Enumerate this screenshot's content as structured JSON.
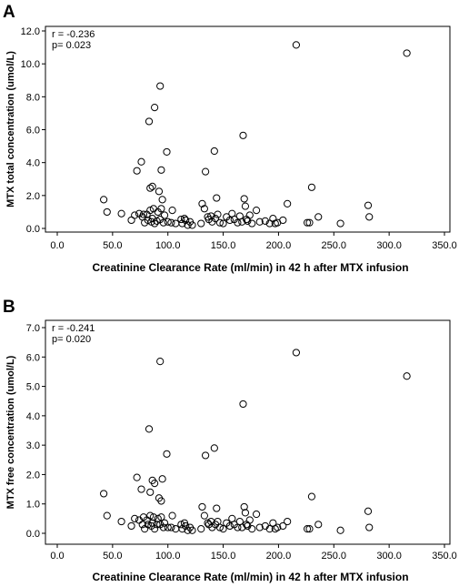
{
  "chart_data": [
    {
      "type": "scatter",
      "panel_label": "A",
      "xlabel": "Creatinine Clearance Rate (ml/min)  in 42 h after MTX infusion",
      "ylabel": "MTX total concentration (umol/L)",
      "xlim": [
        0,
        350
      ],
      "ylim": [
        0,
        12
      ],
      "x_ticks": [
        "0.0",
        "50.0",
        "100.0",
        "150.0",
        "200.0",
        "250.0",
        "300.0",
        "350.0"
      ],
      "y_ticks": [
        "0.0",
        "2.0",
        "4.0",
        "6.0",
        "8.0",
        "10.0",
        "12.0"
      ],
      "x_tick_values": [
        0,
        50,
        100,
        150,
        200,
        250,
        300,
        350
      ],
      "y_tick_values": [
        0,
        2,
        4,
        6,
        8,
        10,
        12
      ],
      "stats": [
        "r = -0.236",
        "p= 0.023"
      ],
      "grid": false,
      "marker": "open-circle",
      "points": [
        [
          42,
          1.75
        ],
        [
          45,
          1.0
        ],
        [
          58,
          0.9
        ],
        [
          67,
          0.5
        ],
        [
          70,
          0.8
        ],
        [
          72,
          3.5
        ],
        [
          74,
          0.9
        ],
        [
          76,
          4.05
        ],
        [
          77,
          0.7
        ],
        [
          78,
          0.85
        ],
        [
          79,
          0.35
        ],
        [
          81,
          0.85
        ],
        [
          82,
          0.5
        ],
        [
          83,
          6.5
        ],
        [
          84,
          1.1
        ],
        [
          84,
          2.45
        ],
        [
          85,
          0.4
        ],
        [
          86,
          2.55
        ],
        [
          86,
          0.6
        ],
        [
          87,
          1.2
        ],
        [
          88,
          7.35
        ],
        [
          88,
          0.3
        ],
        [
          90,
          0.45
        ],
        [
          91,
          1.0
        ],
        [
          92,
          2.25
        ],
        [
          93,
          8.65
        ],
        [
          93,
          0.55
        ],
        [
          94,
          1.2
        ],
        [
          94,
          3.55
        ],
        [
          95,
          1.75
        ],
        [
          96,
          0.35
        ],
        [
          97,
          0.8
        ],
        [
          99,
          4.65
        ],
        [
          100,
          0.4
        ],
        [
          103,
          0.35
        ],
        [
          104,
          1.1
        ],
        [
          107,
          0.3
        ],
        [
          112,
          0.55
        ],
        [
          113,
          0.3
        ],
        [
          115,
          0.6
        ],
        [
          116,
          0.5
        ],
        [
          118,
          0.2
        ],
        [
          120,
          0.4
        ],
        [
          122,
          0.2
        ],
        [
          130,
          0.3
        ],
        [
          131,
          1.5
        ],
        [
          133,
          1.2
        ],
        [
          134,
          3.45
        ],
        [
          136,
          0.7
        ],
        [
          137,
          0.55
        ],
        [
          139,
          0.75
        ],
        [
          140,
          0.4
        ],
        [
          142,
          4.7
        ],
        [
          143,
          0.6
        ],
        [
          144,
          1.85
        ],
        [
          145,
          0.85
        ],
        [
          147,
          0.35
        ],
        [
          150,
          0.3
        ],
        [
          153,
          0.7
        ],
        [
          156,
          0.5
        ],
        [
          158,
          0.9
        ],
        [
          160,
          0.55
        ],
        [
          163,
          0.35
        ],
        [
          165,
          0.75
        ],
        [
          167,
          0.4
        ],
        [
          168,
          5.65
        ],
        [
          169,
          1.8
        ],
        [
          170,
          1.35
        ],
        [
          171,
          0.55
        ],
        [
          172,
          0.45
        ],
        [
          174,
          0.8
        ],
        [
          176,
          0.3
        ],
        [
          180,
          1.1
        ],
        [
          183,
          0.4
        ],
        [
          188,
          0.45
        ],
        [
          192,
          0.3
        ],
        [
          195,
          0.6
        ],
        [
          197,
          0.3
        ],
        [
          199,
          0.35
        ],
        [
          204,
          0.5
        ],
        [
          208,
          1.5
        ],
        [
          216,
          11.15
        ],
        [
          226,
          0.35
        ],
        [
          228,
          0.35
        ],
        [
          230,
          2.5
        ],
        [
          236,
          0.7
        ],
        [
          256,
          0.3
        ],
        [
          281,
          1.4
        ],
        [
          282,
          0.7
        ],
        [
          316,
          10.65
        ]
      ]
    },
    {
      "type": "scatter",
      "panel_label": "B",
      "xlabel": "Creatinine Clearance Rate (ml/min)  in 42 h after MTX infusion",
      "ylabel": "MTX free concentration (umol/L)",
      "xlim": [
        0,
        350
      ],
      "ylim": [
        0,
        7
      ],
      "x_ticks": [
        "0.0",
        "50.0",
        "100.0",
        "150.0",
        "200.0",
        "250.0",
        "300.0",
        "350.0"
      ],
      "y_ticks": [
        "0.0",
        "1.0",
        "2.0",
        "3.0",
        "4.0",
        "5.0",
        "6.0",
        "7.0"
      ],
      "x_tick_values": [
        0,
        50,
        100,
        150,
        200,
        250,
        300,
        350
      ],
      "y_tick_values": [
        0,
        1,
        2,
        3,
        4,
        5,
        6,
        7
      ],
      "stats": [
        "r = -0.241",
        "p= 0.020"
      ],
      "grid": false,
      "marker": "open-circle",
      "points": [
        [
          42,
          1.35
        ],
        [
          45,
          0.6
        ],
        [
          58,
          0.4
        ],
        [
          67,
          0.25
        ],
        [
          70,
          0.5
        ],
        [
          72,
          1.9
        ],
        [
          74,
          0.45
        ],
        [
          76,
          1.5
        ],
        [
          77,
          0.3
        ],
        [
          78,
          0.55
        ],
        [
          79,
          0.15
        ],
        [
          81,
          0.45
        ],
        [
          82,
          0.3
        ],
        [
          83,
          3.55
        ],
        [
          84,
          0.6
        ],
        [
          84,
          1.4
        ],
        [
          85,
          0.25
        ],
        [
          86,
          1.8
        ],
        [
          86,
          0.35
        ],
        [
          87,
          0.55
        ],
        [
          88,
          1.7
        ],
        [
          88,
          0.15
        ],
        [
          90,
          0.3
        ],
        [
          91,
          0.5
        ],
        [
          92,
          1.2
        ],
        [
          93,
          5.85
        ],
        [
          93,
          0.3
        ],
        [
          94,
          0.55
        ],
        [
          94,
          1.1
        ],
        [
          95,
          1.85
        ],
        [
          96,
          0.2
        ],
        [
          97,
          0.35
        ],
        [
          99,
          2.7
        ],
        [
          100,
          0.2
        ],
        [
          103,
          0.2
        ],
        [
          104,
          0.6
        ],
        [
          107,
          0.15
        ],
        [
          112,
          0.3
        ],
        [
          113,
          0.15
        ],
        [
          115,
          0.35
        ],
        [
          116,
          0.25
        ],
        [
          118,
          0.1
        ],
        [
          120,
          0.2
        ],
        [
          122,
          0.1
        ],
        [
          130,
          0.15
        ],
        [
          131,
          0.9
        ],
        [
          133,
          0.6
        ],
        [
          134,
          2.65
        ],
        [
          136,
          0.35
        ],
        [
          137,
          0.3
        ],
        [
          139,
          0.4
        ],
        [
          140,
          0.2
        ],
        [
          142,
          2.9
        ],
        [
          143,
          0.3
        ],
        [
          144,
          0.85
        ],
        [
          145,
          0.4
        ],
        [
          147,
          0.2
        ],
        [
          150,
          0.15
        ],
        [
          153,
          0.35
        ],
        [
          156,
          0.25
        ],
        [
          158,
          0.5
        ],
        [
          160,
          0.3
        ],
        [
          163,
          0.2
        ],
        [
          165,
          0.4
        ],
        [
          167,
          0.2
        ],
        [
          168,
          4.4
        ],
        [
          169,
          0.9
        ],
        [
          170,
          0.7
        ],
        [
          171,
          0.3
        ],
        [
          172,
          0.25
        ],
        [
          174,
          0.45
        ],
        [
          176,
          0.15
        ],
        [
          180,
          0.65
        ],
        [
          183,
          0.2
        ],
        [
          188,
          0.25
        ],
        [
          192,
          0.15
        ],
        [
          195,
          0.35
        ],
        [
          197,
          0.15
        ],
        [
          199,
          0.2
        ],
        [
          204,
          0.25
        ],
        [
          208,
          0.4
        ],
        [
          216,
          6.15
        ],
        [
          226,
          0.15
        ],
        [
          228,
          0.15
        ],
        [
          230,
          1.25
        ],
        [
          236,
          0.3
        ],
        [
          256,
          0.1
        ],
        [
          281,
          0.75
        ],
        [
          282,
          0.2
        ],
        [
          316,
          5.35
        ]
      ]
    }
  ]
}
